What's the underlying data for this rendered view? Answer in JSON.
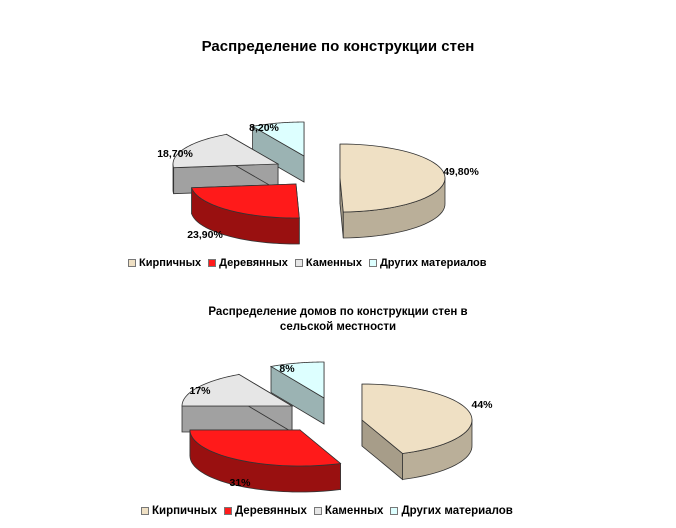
{
  "chart_data": [
    {
      "type": "pie",
      "title": "Распределение по конструкции стен",
      "categories": [
        "Кирпичных",
        "Деревянных",
        "Каменных",
        "Других материалов"
      ],
      "values": [
        49.8,
        23.9,
        18.7,
        8.2
      ],
      "value_labels": [
        "49,80%",
        "23,90%",
        "18,70%",
        "8,20%"
      ],
      "colors": [
        "#efe0c4",
        "#ff1a1a",
        "#e6e6e6",
        "#ddffff"
      ],
      "exploded": true,
      "three_d": true,
      "legend_position": "bottom"
    },
    {
      "type": "pie",
      "title": "Распределение домов по конструкции стен в сельской местности",
      "categories": [
        "Кирпичных",
        "Деревянных",
        "Каменных",
        "Других материалов"
      ],
      "values": [
        44,
        31,
        17,
        8
      ],
      "value_labels": [
        "44%",
        "31%",
        "17%",
        "8%"
      ],
      "colors": [
        "#efe0c4",
        "#ff1a1a",
        "#e6e6e6",
        "#ddffff"
      ],
      "exploded": true,
      "three_d": true,
      "legend_position": "bottom"
    }
  ]
}
